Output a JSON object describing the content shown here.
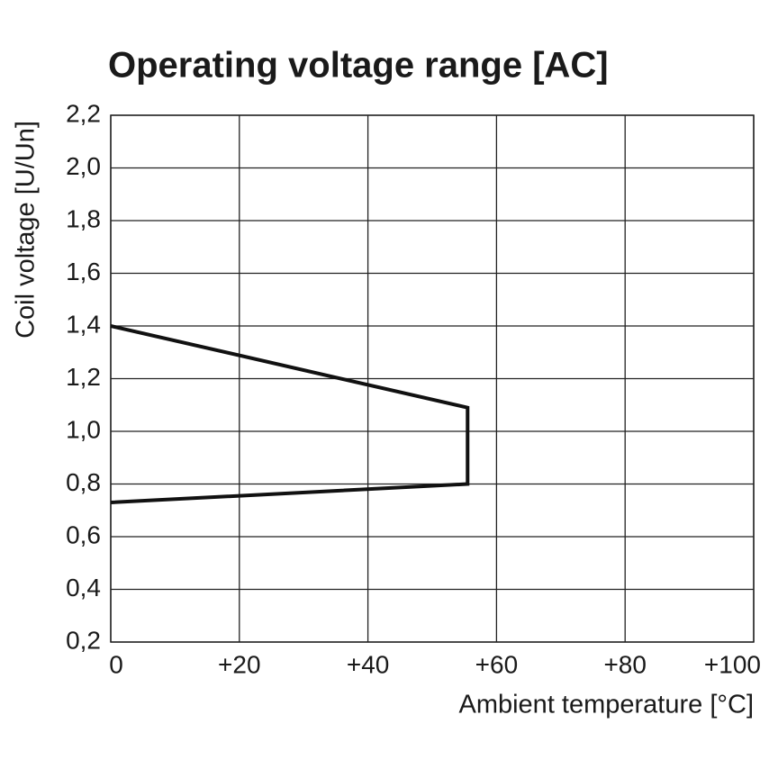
{
  "chart_data": {
    "type": "line",
    "title": "Operating voltage range [AC]",
    "x_label": "Ambient temperature [°C]",
    "y_label": "Coil voltage [U/Un]",
    "x": [
      0,
      55.5,
      55.5,
      0
    ],
    "values": [
      1.4,
      1.09,
      0.8,
      0.73
    ],
    "color": "#111111",
    "xlim": [
      0,
      100
    ],
    "xticks": [
      0,
      {
        "value": 20,
        "label": "+20"
      },
      {
        "value": 40,
        "label": "+40"
      },
      {
        "value": 60,
        "label": "+60"
      },
      {
        "value": 80,
        "label": "+80"
      },
      {
        "value": 100,
        "label": "+100"
      }
    ],
    "ylim": [
      0.2,
      2.2
    ],
    "yticks": [
      {
        "value": 0.2,
        "label": "0,2"
      },
      {
        "value": 0.4,
        "label": "0,4"
      },
      {
        "value": 0.6,
        "label": "0,6"
      },
      {
        "value": 0.8,
        "label": "0,8"
      },
      {
        "value": 1.0,
        "label": "1,0"
      },
      {
        "value": 1.2,
        "label": "1,2"
      },
      {
        "value": 1.4,
        "label": "1,4"
      },
      {
        "value": 1.6,
        "label": "1,6"
      },
      {
        "value": 1.8,
        "label": "1,8"
      },
      {
        "value": 2.0,
        "label": "2,0"
      },
      {
        "value": 2.2,
        "label": "2,2"
      }
    ],
    "grid": true
  }
}
